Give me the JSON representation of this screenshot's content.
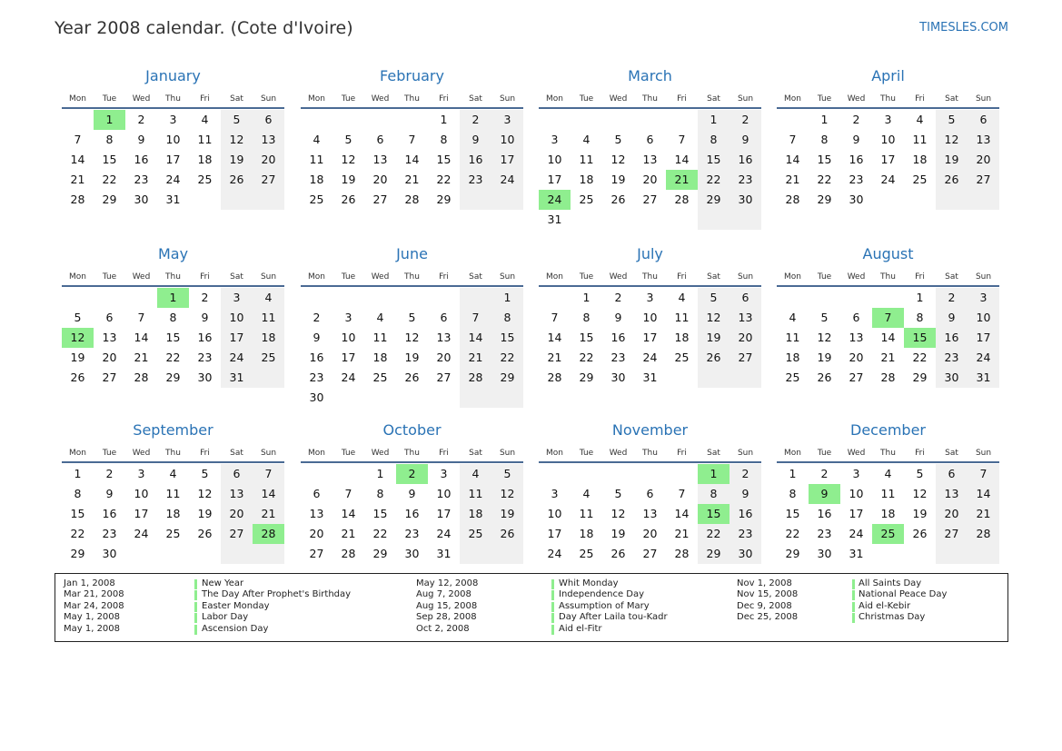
{
  "header": {
    "title": "Year 2008 calendar. (Cote d'Ivoire)",
    "site": "TIMESLES.COM"
  },
  "weekdays": [
    "Mon",
    "Tue",
    "Wed",
    "Thu",
    "Fri",
    "Sat",
    "Sun"
  ],
  "months": [
    {
      "name": "January",
      "weeks": [
        [
          null,
          1,
          2,
          3,
          4,
          5,
          6
        ],
        [
          7,
          8,
          9,
          10,
          11,
          12,
          13
        ],
        [
          14,
          15,
          16,
          17,
          18,
          19,
          20
        ],
        [
          21,
          22,
          23,
          24,
          25,
          26,
          27
        ],
        [
          28,
          29,
          30,
          31
        ]
      ],
      "highlight": [
        1
      ]
    },
    {
      "name": "February",
      "weeks": [
        [
          null,
          null,
          null,
          null,
          1,
          2,
          3
        ],
        [
          4,
          5,
          6,
          7,
          8,
          9,
          10
        ],
        [
          11,
          12,
          13,
          14,
          15,
          16,
          17
        ],
        [
          18,
          19,
          20,
          21,
          22,
          23,
          24
        ],
        [
          25,
          26,
          27,
          28,
          29
        ]
      ],
      "highlight": []
    },
    {
      "name": "March",
      "weeks": [
        [
          null,
          null,
          null,
          null,
          null,
          1,
          2
        ],
        [
          3,
          4,
          5,
          6,
          7,
          8,
          9
        ],
        [
          10,
          11,
          12,
          13,
          14,
          15,
          16
        ],
        [
          17,
          18,
          19,
          20,
          21,
          22,
          23
        ],
        [
          24,
          25,
          26,
          27,
          28,
          29,
          30
        ],
        [
          31
        ]
      ],
      "highlight": [
        21,
        24
      ]
    },
    {
      "name": "April",
      "weeks": [
        [
          null,
          1,
          2,
          3,
          4,
          5,
          6
        ],
        [
          7,
          8,
          9,
          10,
          11,
          12,
          13
        ],
        [
          14,
          15,
          16,
          17,
          18,
          19,
          20
        ],
        [
          21,
          22,
          23,
          24,
          25,
          26,
          27
        ],
        [
          28,
          29,
          30
        ]
      ],
      "highlight": []
    },
    {
      "name": "May",
      "weeks": [
        [
          null,
          null,
          null,
          1,
          2,
          3,
          4
        ],
        [
          5,
          6,
          7,
          8,
          9,
          10,
          11
        ],
        [
          12,
          13,
          14,
          15,
          16,
          17,
          18
        ],
        [
          19,
          20,
          21,
          22,
          23,
          24,
          25
        ],
        [
          26,
          27,
          28,
          29,
          30,
          31
        ]
      ],
      "highlight": [
        1,
        12
      ]
    },
    {
      "name": "June",
      "weeks": [
        [
          null,
          null,
          null,
          null,
          null,
          null,
          1
        ],
        [
          2,
          3,
          4,
          5,
          6,
          7,
          8
        ],
        [
          9,
          10,
          11,
          12,
          13,
          14,
          15
        ],
        [
          16,
          17,
          18,
          19,
          20,
          21,
          22
        ],
        [
          23,
          24,
          25,
          26,
          27,
          28,
          29
        ],
        [
          30
        ]
      ],
      "highlight": []
    },
    {
      "name": "July",
      "weeks": [
        [
          null,
          1,
          2,
          3,
          4,
          5,
          6
        ],
        [
          7,
          8,
          9,
          10,
          11,
          12,
          13
        ],
        [
          14,
          15,
          16,
          17,
          18,
          19,
          20
        ],
        [
          21,
          22,
          23,
          24,
          25,
          26,
          27
        ],
        [
          28,
          29,
          30,
          31
        ]
      ],
      "highlight": []
    },
    {
      "name": "August",
      "weeks": [
        [
          null,
          null,
          null,
          null,
          1,
          2,
          3
        ],
        [
          4,
          5,
          6,
          7,
          8,
          9,
          10
        ],
        [
          11,
          12,
          13,
          14,
          15,
          16,
          17
        ],
        [
          18,
          19,
          20,
          21,
          22,
          23,
          24
        ],
        [
          25,
          26,
          27,
          28,
          29,
          30,
          31
        ]
      ],
      "highlight": [
        7,
        15
      ]
    },
    {
      "name": "September",
      "weeks": [
        [
          1,
          2,
          3,
          4,
          5,
          6,
          7
        ],
        [
          8,
          9,
          10,
          11,
          12,
          13,
          14
        ],
        [
          15,
          16,
          17,
          18,
          19,
          20,
          21
        ],
        [
          22,
          23,
          24,
          25,
          26,
          27,
          28
        ],
        [
          29,
          30
        ]
      ],
      "highlight": [
        28
      ]
    },
    {
      "name": "October",
      "weeks": [
        [
          null,
          null,
          1,
          2,
          3,
          4,
          5
        ],
        [
          6,
          7,
          8,
          9,
          10,
          11,
          12
        ],
        [
          13,
          14,
          15,
          16,
          17,
          18,
          19
        ],
        [
          20,
          21,
          22,
          23,
          24,
          25,
          26
        ],
        [
          27,
          28,
          29,
          30,
          31
        ]
      ],
      "highlight": [
        2
      ]
    },
    {
      "name": "November",
      "weeks": [
        [
          null,
          null,
          null,
          null,
          null,
          1,
          2
        ],
        [
          3,
          4,
          5,
          6,
          7,
          8,
          9
        ],
        [
          10,
          11,
          12,
          13,
          14,
          15,
          16
        ],
        [
          17,
          18,
          19,
          20,
          21,
          22,
          23
        ],
        [
          24,
          25,
          26,
          27,
          28,
          29,
          30
        ]
      ],
      "highlight": [
        1,
        15
      ]
    },
    {
      "name": "December",
      "weeks": [
        [
          1,
          2,
          3,
          4,
          5,
          6,
          7
        ],
        [
          8,
          9,
          10,
          11,
          12,
          13,
          14
        ],
        [
          15,
          16,
          17,
          18,
          19,
          20,
          21
        ],
        [
          22,
          23,
          24,
          25,
          26,
          27,
          28
        ],
        [
          29,
          30,
          31
        ]
      ],
      "highlight": [
        9,
        25
      ]
    }
  ],
  "holidays": [
    {
      "date": "Jan 1, 2008",
      "name": "New Year"
    },
    {
      "date": "Mar 21, 2008",
      "name": "The Day After Prophet's Birthday"
    },
    {
      "date": "Mar 24, 2008",
      "name": "Easter Monday"
    },
    {
      "date": "May 1, 2008",
      "name": "Labor Day"
    },
    {
      "date": "May 1, 2008",
      "name": "Ascension Day"
    },
    {
      "date": "May 12, 2008",
      "name": "Whit Monday"
    },
    {
      "date": "Aug 7, 2008",
      "name": "Independence Day"
    },
    {
      "date": "Aug 15, 2008",
      "name": "Assumption of Mary"
    },
    {
      "date": "Sep 28, 2008",
      "name": "Day After Laila tou-Kadr"
    },
    {
      "date": "Oct 2, 2008",
      "name": "Aid el-Fitr"
    },
    {
      "date": "Nov 1, 2008",
      "name": "All Saints Day"
    },
    {
      "date": "Nov 15, 2008",
      "name": "National Peace Day"
    },
    {
      "date": "Dec 9, 2008",
      "name": "Aid el-Kebir"
    },
    {
      "date": "Dec 25, 2008",
      "name": "Christmas Day"
    }
  ]
}
